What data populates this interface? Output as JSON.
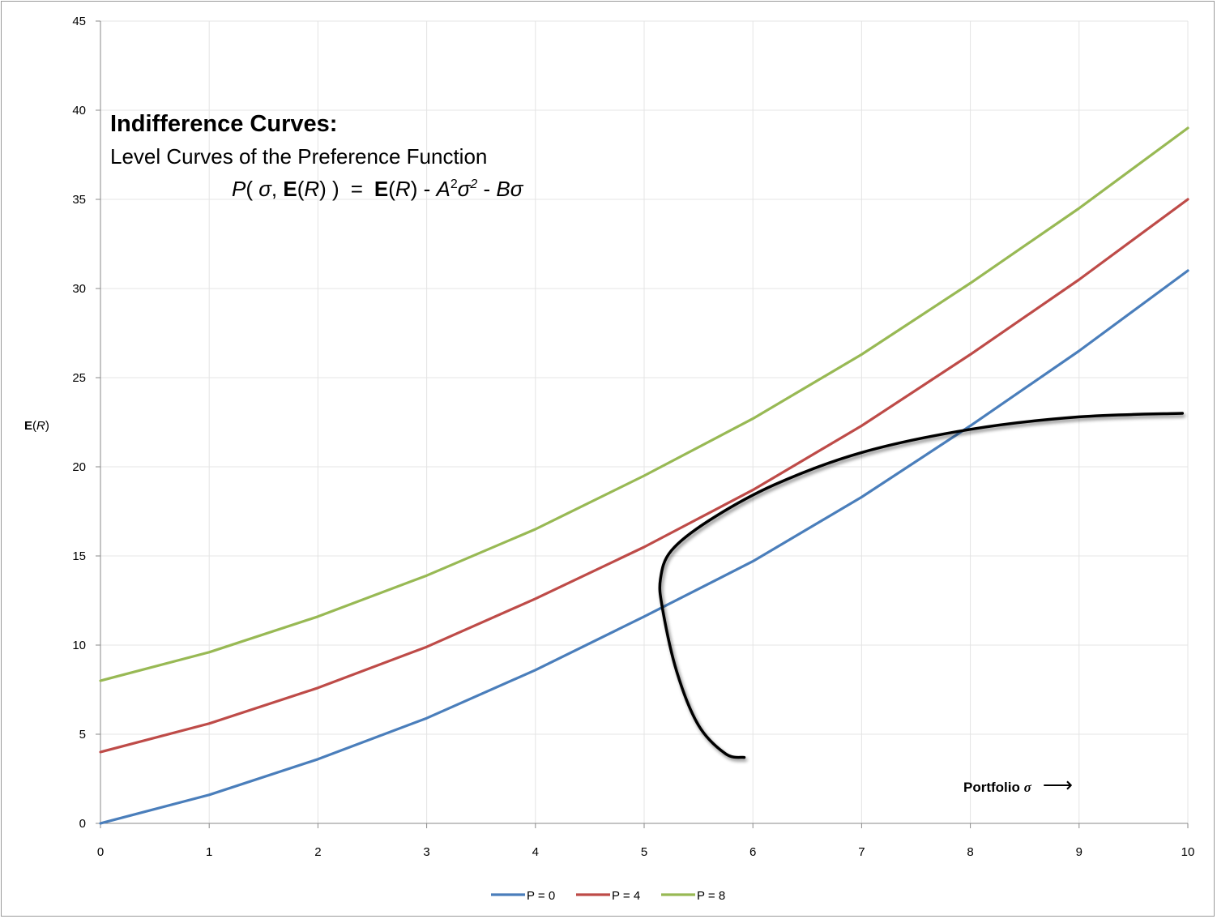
{
  "chart_data": {
    "type": "line",
    "title": "Indifference Curves:",
    "subtitle": "Level Curves of the Preference Function",
    "formula": {
      "lhs_p": "P",
      "lhs_open": "( ",
      "lhs_sigma": "σ",
      "lhs_comma": ", ",
      "lhs_E": "E",
      "lhs_R_open": "(",
      "lhs_R": "R",
      "lhs_R_close": ") )",
      "eq": "=",
      "rhs_E": "E",
      "rhs_R_open": "(",
      "rhs_R": "R",
      "rhs_R_close": ") - ",
      "rhs_A": "A",
      "rhs_A_exp": "2",
      "rhs_sigma": "σ",
      "rhs_sigma_exp": "2",
      "rhs_minus": " - ",
      "rhs_B": "B",
      "rhs_sigma2": "σ"
    },
    "ylabel": {
      "bold": "E",
      "open": "(",
      "italic": "R",
      "close": ")"
    },
    "annotation": {
      "text": "Portfolio ",
      "symbol": "σ",
      "arrow": "⟶"
    },
    "x": [
      0,
      1,
      2,
      3,
      4,
      5,
      6,
      7,
      8,
      9,
      10
    ],
    "xticks": [
      "0",
      "1",
      "2",
      "3",
      "4",
      "5",
      "6",
      "7",
      "8",
      "9",
      "10"
    ],
    "yticks": [
      "0",
      "5",
      "10",
      "15",
      "20",
      "25",
      "30",
      "35",
      "40",
      "45"
    ],
    "xlim": [
      0,
      10
    ],
    "ylim": [
      0,
      45
    ],
    "grid": true,
    "legend_position": "bottom",
    "series": [
      {
        "name": "P = 0",
        "color": "#4a7ebb",
        "values": [
          0,
          1.6,
          3.6,
          5.9,
          8.6,
          11.6,
          14.7,
          18.3,
          22.3,
          26.5,
          31.0
        ]
      },
      {
        "name": "P = 4",
        "color": "#be4b48",
        "values": [
          4.0,
          5.6,
          7.6,
          9.9,
          12.6,
          15.5,
          18.7,
          22.3,
          26.3,
          30.5,
          35.0
        ]
      },
      {
        "name": "P = 8",
        "color": "#98b954",
        "values": [
          8.0,
          9.6,
          11.6,
          13.9,
          16.5,
          19.5,
          22.7,
          26.3,
          30.3,
          34.5,
          39.0
        ]
      }
    ],
    "frontier_curve": {
      "color": "#000000",
      "points": [
        [
          5.92,
          3.7
        ],
        [
          5.75,
          3.9
        ],
        [
          5.5,
          5.5
        ],
        [
          5.3,
          8.5
        ],
        [
          5.17,
          12.0
        ],
        [
          5.15,
          13.7
        ],
        [
          5.25,
          15.3
        ],
        [
          5.6,
          17.0
        ],
        [
          6.2,
          19.0
        ],
        [
          7.0,
          20.8
        ],
        [
          8.0,
          22.1
        ],
        [
          9.0,
          22.8
        ],
        [
          9.95,
          23.0
        ]
      ]
    }
  }
}
